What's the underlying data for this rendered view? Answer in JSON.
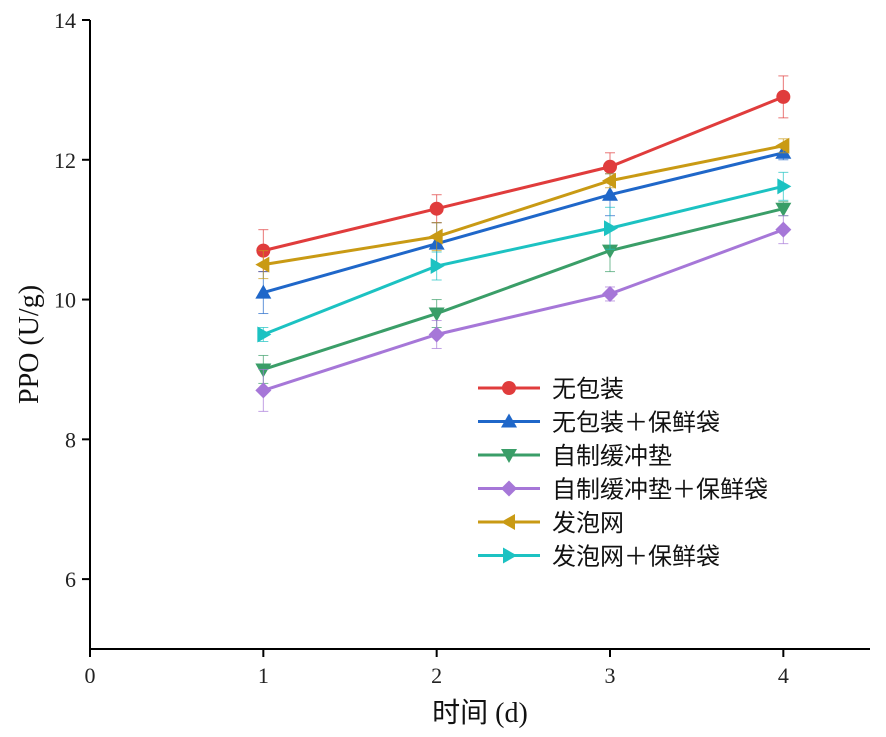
{
  "chart_data": {
    "type": "line",
    "xlabel": "时间 (d)",
    "ylabel": "PPO (U/g)",
    "xlim": [
      0,
      4.5
    ],
    "ylim": [
      5,
      14
    ],
    "xticks": [
      "0",
      "1",
      "2",
      "3",
      "4"
    ],
    "yticks": [
      "6",
      "8",
      "10",
      "12",
      "14"
    ],
    "grid": false,
    "legend_position": "bottom-right",
    "x": [
      1,
      2,
      3,
      4
    ],
    "series": [
      {
        "name": "无包装",
        "values": [
          10.7,
          11.3,
          11.9,
          12.9
        ],
        "errors": [
          0.3,
          0.2,
          0.2,
          0.3
        ],
        "color": "#e03c3c",
        "marker": "circle"
      },
      {
        "name": "无包装＋保鲜袋",
        "values": [
          10.1,
          10.8,
          11.5,
          12.1
        ],
        "errors": [
          0.3,
          0.3,
          0.3,
          0.1
        ],
        "color": "#1f67c9",
        "marker": "triangle-up"
      },
      {
        "name": "自制缓冲垫",
        "values": [
          9.0,
          9.8,
          10.7,
          11.3
        ],
        "errors": [
          0.2,
          0.2,
          0.3,
          0.1
        ],
        "color": "#3a9e68",
        "marker": "triangle-down"
      },
      {
        "name": "自制缓冲垫＋保鲜袋",
        "values": [
          8.7,
          9.5,
          10.08,
          11.0
        ],
        "errors": [
          0.3,
          0.2,
          0.1,
          0.2
        ],
        "color": "#a677d8",
        "marker": "diamond"
      },
      {
        "name": "发泡网",
        "values": [
          10.5,
          10.9,
          11.7,
          12.2
        ],
        "errors": [
          0.2,
          0.2,
          0.1,
          0.1
        ],
        "color": "#c99a14",
        "marker": "triangle-left"
      },
      {
        "name": "发泡网＋保鲜袋",
        "values": [
          9.5,
          10.48,
          11.02,
          11.62
        ],
        "errors": [
          0.1,
          0.2,
          0.3,
          0.2
        ],
        "color": "#1cc2c2",
        "marker": "triangle-right"
      }
    ]
  }
}
